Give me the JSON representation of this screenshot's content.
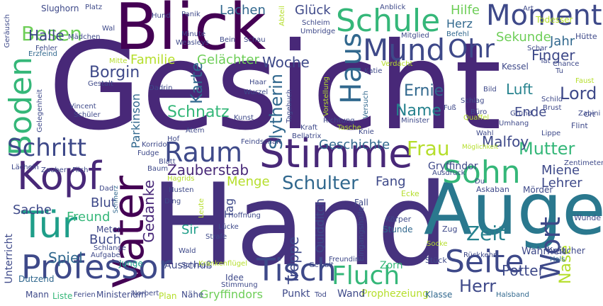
{
  "colors": {
    "background": "#ffffff",
    "palette": [
      "#440154",
      "#482878",
      "#3e4989",
      "#31688e",
      "#26828e",
      "#1f9e89",
      "#35b779",
      "#6ece58",
      "#b5de2b",
      "#fde725"
    ]
  },
  "words": [
    {
      "text": "Gesicht",
      "weight": 1.0,
      "color": "#482878"
    },
    {
      "text": "Hand",
      "weight": 0.86,
      "color": "#46327e"
    },
    {
      "text": "Blick",
      "weight": 0.58,
      "color": "#440154"
    },
    {
      "text": "Auge",
      "weight": 0.58,
      "color": "#2a788e"
    },
    {
      "text": "Stimme",
      "weight": 0.38,
      "color": "#482878"
    },
    {
      "text": "Vater",
      "weight": 0.36,
      "color": "#440154"
    },
    {
      "text": "Professor",
      "weight": 0.36,
      "color": "#3e4989"
    },
    {
      "text": "Tisch",
      "weight": 0.34,
      "color": "#3e4989"
    },
    {
      "text": "Kopf",
      "weight": 0.32,
      "color": "#482878"
    },
    {
      "text": "Tür",
      "weight": 0.32,
      "color": "#1f9e89"
    },
    {
      "text": "Schule",
      "weight": 0.28,
      "color": "#35b779"
    },
    {
      "text": "Mund",
      "weight": 0.28,
      "color": "#3e4989"
    },
    {
      "text": "Moment",
      "weight": 0.28,
      "color": "#3e4989"
    },
    {
      "text": "Seite",
      "weight": 0.28,
      "color": "#3e4989"
    },
    {
      "text": "Sohn",
      "weight": 0.28,
      "color": "#35b779"
    },
    {
      "text": "Boden",
      "weight": 0.26,
      "color": "#35b779"
    },
    {
      "text": "Haus",
      "weight": 0.24,
      "color": "#31688e"
    },
    {
      "text": "Raum",
      "weight": 0.24,
      "color": "#3e4989"
    },
    {
      "text": "Fluch",
      "weight": 0.24,
      "color": "#35b779"
    },
    {
      "text": "Wort",
      "weight": 0.24,
      "color": "#3e4989"
    },
    {
      "text": "Ohr",
      "weight": 0.22,
      "color": "#3e4989"
    },
    {
      "text": "Schritt",
      "weight": 0.22,
      "color": "#3e4989"
    },
    {
      "text": "Zeit",
      "weight": 0.2,
      "color": "#26828e"
    },
    {
      "text": "Schulter",
      "weight": 0.18,
      "color": "#31688e"
    },
    {
      "text": "Frau",
      "weight": 0.18,
      "color": "#b5de2b"
    },
    {
      "text": "Besen",
      "weight": 0.18,
      "color": "#6ece58"
    },
    {
      "text": "Slytherin",
      "weight": 0.14,
      "color": "#31688e"
    },
    {
      "text": "Herr",
      "weight": 0.14,
      "color": "#3e4989"
    },
    {
      "text": "Mutter",
      "weight": 0.14,
      "color": "#35b779"
    },
    {
      "text": "Lord",
      "weight": 0.14,
      "color": "#3e4989"
    },
    {
      "text": "Nase",
      "weight": 0.14,
      "color": "#b5de2b"
    },
    {
      "text": "Schnatz",
      "weight": 0.12,
      "color": "#35b779"
    },
    {
      "text": "Borgin",
      "weight": 0.12,
      "color": "#3e4989"
    },
    {
      "text": "Name",
      "weight": 0.12,
      "color": "#26828e"
    },
    {
      "text": "Ernie",
      "weight": 0.12,
      "color": "#31688e"
    },
    {
      "text": "Halle",
      "weight": 0.12,
      "color": "#3e4989"
    },
    {
      "text": "Karte",
      "weight": 0.12,
      "color": "#31688e"
    },
    {
      "text": "Malfoy",
      "weight": 0.12,
      "color": "#3e4989"
    },
    {
      "text": "Zauberstab",
      "weight": 0.12,
      "color": "#482878"
    },
    {
      "text": "Gedanke",
      "weight": 0.12,
      "color": "#482878"
    },
    {
      "text": "Geschichte",
      "weight": 0.1,
      "color": "#31688e"
    },
    {
      "text": "Jahr",
      "weight": 0.1,
      "color": "#31688e"
    },
    {
      "text": "Finger",
      "weight": 0.1,
      "color": "#3e4989"
    },
    {
      "text": "Luft",
      "weight": 0.1,
      "color": "#26828e"
    },
    {
      "text": "Ende",
      "weight": 0.1,
      "color": "#3e4989"
    },
    {
      "text": "Potter",
      "weight": 0.1,
      "color": "#3e4989"
    },
    {
      "text": "Treppe",
      "weight": 0.1,
      "color": "#3e4989"
    },
    {
      "text": "Spiel",
      "weight": 0.1,
      "color": "#31688e"
    },
    {
      "text": "Lachen",
      "weight": 0.1,
      "color": "#31688e"
    },
    {
      "text": "Woche",
      "weight": 0.1,
      "color": "#3e4989"
    },
    {
      "text": "Glück",
      "weight": 0.1,
      "color": "#3e4989"
    },
    {
      "text": "Hilfe",
      "weight": 0.1,
      "color": "#6ece58"
    },
    {
      "text": "Herz",
      "weight": 0.08,
      "color": "#31688e"
    },
    {
      "text": "Sekunde",
      "weight": 0.08,
      "color": "#6ece58"
    },
    {
      "text": "Familie",
      "weight": 0.08,
      "color": "#b5de2b"
    },
    {
      "text": "Gelächter",
      "weight": 0.08,
      "color": "#6ece58"
    },
    {
      "text": "Freund",
      "weight": 0.08,
      "color": "#35b779"
    },
    {
      "text": "Sache",
      "weight": 0.08,
      "color": "#3e4989"
    },
    {
      "text": "Blut",
      "weight": 0.08,
      "color": "#3e4989"
    },
    {
      "text": "Buch",
      "weight": 0.08,
      "color": "#3e4989"
    },
    {
      "text": "Sir",
      "weight": 0.08,
      "color": "#1f9e89"
    },
    {
      "text": "Menge",
      "weight": 0.08,
      "color": "#b5de2b"
    },
    {
      "text": "Fang",
      "weight": 0.08,
      "color": "#3e4989"
    },
    {
      "text": "Miene",
      "weight": 0.08,
      "color": "#3e4989"
    },
    {
      "text": "Lehrer",
      "weight": 0.08,
      "color": "#3e4989"
    },
    {
      "text": "Quidditch",
      "weight": 0.08,
      "color": "#3e4989"
    },
    {
      "text": "Tag",
      "weight": 0.08,
      "color": "#3e4989"
    },
    {
      "text": "Parkinson",
      "weight": 0.06,
      "color": "#31688e"
    },
    {
      "text": "Gryffindor",
      "weight": 0.06,
      "color": "#3e4989"
    },
    {
      "text": "Gryffindors",
      "weight": 0.06,
      "color": "#6ece58"
    },
    {
      "text": "Wahrheit",
      "weight": 0.06,
      "color": "#3e4989"
    },
    {
      "text": "Unterricht",
      "weight": 0.06,
      "color": "#3e4989"
    },
    {
      "text": "Ausschuß",
      "weight": 0.06,
      "color": "#3e4989"
    },
    {
      "text": "Prophezeiung",
      "weight": 0.06,
      "color": "#b5de2b"
    },
    {
      "text": "Wand",
      "weight": 0.06,
      "color": "#3e4989"
    },
    {
      "text": "Punkt",
      "weight": 0.06,
      "color": "#3e4989"
    },
    {
      "text": "Stunde",
      "weight": 0.06,
      "color": "#31688e"
    },
    {
      "text": "Zorn",
      "weight": 0.05,
      "color": "#35b779"
    },
    {
      "text": "Klasse",
      "weight": 0.05,
      "color": "#31688e"
    },
    {
      "text": "Junge",
      "weight": 0.05,
      "color": "#1f9e89"
    },
    {
      "text": "Dutzend",
      "weight": 0.05,
      "color": "#31688e"
    },
    {
      "text": "Meter",
      "weight": 0.05,
      "color": "#3e4989"
    },
    {
      "text": "Ministerium",
      "weight": 0.05,
      "color": "#3e4989"
    },
    {
      "text": "Mann",
      "weight": 0.05,
      "color": "#3e4989"
    },
    {
      "text": "Liste",
      "weight": 0.05,
      "color": "#35b779"
    },
    {
      "text": "Ferien",
      "weight": 0.05,
      "color": "#3e4989"
    },
    {
      "text": "Plan",
      "weight": 0.05,
      "color": "#b5de2b"
    },
    {
      "text": "Nähe",
      "weight": 0.05,
      "color": "#3e4989"
    },
    {
      "text": "Tod",
      "weight": 0.05,
      "color": "#3e4989"
    },
    {
      "text": "Idee",
      "weight": 0.05,
      "color": "#3e4989"
    },
    {
      "text": "Stimmung",
      "weight": 0.05,
      "color": "#3e4989"
    },
    {
      "text": "Eingangshalle",
      "weight": 0.05,
      "color": "#3e4989"
    },
    {
      "text": "Fall",
      "weight": 0.05,
      "color": "#3e4989"
    },
    {
      "text": "Ecke",
      "weight": 0.05,
      "color": "#b5de2b"
    },
    {
      "text": "Zug",
      "weight": 0.05,
      "color": "#3e4989"
    },
    {
      "text": "Körper",
      "weight": 0.05,
      "color": "#3e4989"
    },
    {
      "text": "Socke",
      "weight": 0.04,
      "color": "#b5de2b"
    },
    {
      "text": "Stück",
      "weight": 0.04,
      "color": "#3e4989"
    },
    {
      "text": "Rückkehr",
      "weight": 0.04,
      "color": "#3e4989"
    },
    {
      "text": "Kreacher",
      "weight": 0.04,
      "color": "#3e4989"
    },
    {
      "text": "Hals",
      "weight": 0.04,
      "color": "#31688e"
    },
    {
      "text": "Halsband",
      "weight": 0.04,
      "color": "#31688e"
    },
    {
      "text": "Mörder",
      "weight": 0.04,
      "color": "#3e4989"
    },
    {
      "text": "Askaban",
      "weight": 0.04,
      "color": "#3e4989"
    },
    {
      "text": "Wunde",
      "weight": 0.04,
      "color": "#3e4989"
    },
    {
      "text": "Zentimeter",
      "weight": 0.04,
      "color": "#3e4989"
    },
    {
      "text": "Flint",
      "weight": 0.04,
      "color": "#3e4989"
    },
    {
      "text": "Zabini",
      "weight": 0.04,
      "color": "#3e4989"
    },
    {
      "text": "Ort",
      "weight": 0.04,
      "color": "#3e4989"
    },
    {
      "text": "Faust",
      "weight": 0.04,
      "color": "#b5de2b"
    },
    {
      "text": "Kessel",
      "weight": 0.04,
      "color": "#3e4989"
    },
    {
      "text": "Chance",
      "weight": 0.04,
      "color": "#3e4989"
    },
    {
      "text": "Hütte",
      "weight": 0.04,
      "color": "#3e4989"
    },
    {
      "text": "Todesser",
      "weight": 0.04,
      "color": "#b5de2b"
    },
    {
      "text": "Art",
      "weight": 0.04,
      "color": "#3e4989"
    },
    {
      "text": "Anblick",
      "weight": 0.04,
      "color": "#3e4989"
    },
    {
      "text": "Befehl",
      "weight": 0.04,
      "color": "#31688e"
    },
    {
      "text": "Mitglied",
      "weight": 0.04,
      "color": "#3e4989"
    },
    {
      "text": "Umbridge",
      "weight": 0.04,
      "color": "#3e4989"
    },
    {
      "text": "Schleim",
      "weight": 0.04,
      "color": "#3e4989"
    },
    {
      "text": "Abteil",
      "weight": 0.04,
      "color": "#b5de2b"
    },
    {
      "text": "Schau",
      "weight": 0.04,
      "color": "#3e4989"
    },
    {
      "text": "Bein",
      "weight": 0.04,
      "color": "#3e4989"
    },
    {
      "text": "Weasleys",
      "weight": 0.04,
      "color": "#3e4989"
    },
    {
      "text": "Minute",
      "weight": 0.04,
      "color": "#3e4989"
    },
    {
      "text": "Panik",
      "weight": 0.04,
      "color": "#3e4989"
    },
    {
      "text": "Hund",
      "weight": 0.04,
      "color": "#3e4989"
    },
    {
      "text": "Platz",
      "weight": 0.04,
      "color": "#3e4989"
    },
    {
      "text": "Slughorn",
      "weight": 0.04,
      "color": "#3e4989"
    },
    {
      "text": "Wal",
      "weight": 0.03,
      "color": "#3e4989"
    },
    {
      "text": "Mädchen",
      "weight": 0.04,
      "color": "#3e4989"
    },
    {
      "text": "Geräusch",
      "weight": 0.04,
      "color": "#3e4989"
    },
    {
      "text": "Fehler",
      "weight": 0.04,
      "color": "#3e4989"
    },
    {
      "text": "Erzfeind",
      "weight": 0.04,
      "color": "#31688e"
    },
    {
      "text": "Mitte",
      "weight": 0.04,
      "color": "#b5de2b"
    },
    {
      "text": "Gestalt",
      "weight": 0.04,
      "color": "#3e4989"
    },
    {
      "text": "Dadrin",
      "weight": 0.04,
      "color": "#3e4989"
    },
    {
      "text": "Gelegenheit",
      "weight": 0.04,
      "color": "#3e4989"
    },
    {
      "text": "Vincent",
      "weight": 0.04,
      "color": "#3e4989"
    },
    {
      "text": "Schüler",
      "weight": 0.04,
      "color": "#3e4989"
    },
    {
      "text": "Kunst",
      "weight": 0.04,
      "color": "#3e4989"
    },
    {
      "text": "Wurzel",
      "weight": 0.04,
      "color": "#3e4989"
    },
    {
      "text": "Haar",
      "weight": 0.04,
      "color": "#3e4989"
    },
    {
      "text": "Tagebuch",
      "weight": 0.04,
      "color": "#3e4989"
    },
    {
      "text": "Vorstellung",
      "weight": 0.04,
      "color": "#b5de2b"
    },
    {
      "text": "Versuch",
      "weight": 0.04,
      "color": "#31688e"
    },
    {
      "text": "Verdacht",
      "weight": 0.04,
      "color": "#b5de2b"
    },
    {
      "text": "Katie",
      "weight": 0.04,
      "color": "#3e4989"
    },
    {
      "text": "Tat",
      "weight": 0.04,
      "color": "#3e4989"
    },
    {
      "text": "Schar",
      "weight": 0.03,
      "color": "#3e4989"
    },
    {
      "text": "Tu",
      "weight": 0.03,
      "color": "#3e4989"
    },
    {
      "text": "Bild",
      "weight": 0.04,
      "color": "#3e4989"
    },
    {
      "text": "Schlag",
      "weight": 0.04,
      "color": "#3e4989"
    },
    {
      "text": "Büro",
      "weight": 0.04,
      "color": "#3e4989"
    },
    {
      "text": "Quaffel",
      "weight": 0.04,
      "color": "#b5de2b"
    },
    {
      "text": "Fuß",
      "weight": 0.04,
      "color": "#3e4989"
    },
    {
      "text": "Schild",
      "weight": 0.04,
      "color": "#3e4989"
    },
    {
      "text": "Brust",
      "weight": 0.04,
      "color": "#3e4989"
    },
    {
      "text": "Grund",
      "weight": 0.04,
      "color": "#3e4989"
    },
    {
      "text": "Umhang",
      "weight": 0.04,
      "color": "#3e4989"
    },
    {
      "text": "Wahl",
      "weight": 0.04,
      "color": "#3e4989"
    },
    {
      "text": "Minister",
      "weight": 0.04,
      "color": "#3e4989"
    },
    {
      "text": "Knie",
      "weight": 0.04,
      "color": "#3e4989"
    },
    {
      "text": "Lippe",
      "weight": 0.04,
      "color": "#3e4989"
    },
    {
      "text": "Möglichkeit",
      "weight": 0.03,
      "color": "#b5de2b"
    },
    {
      "text": "Ausdruck",
      "weight": 0.04,
      "color": "#3e4989"
    },
    {
      "text": "Richtung",
      "weight": 0.04,
      "color": "#3e4989"
    },
    {
      "text": "Tasche",
      "weight": 0.04,
      "color": "#b5de2b"
    },
    {
      "text": "Kraft",
      "weight": 0.04,
      "color": "#3e4989"
    },
    {
      "text": "Bellatrix",
      "weight": 0.04,
      "color": "#3e4989"
    },
    {
      "text": "Feindschaft",
      "weight": 0.04,
      "color": "#3e4989"
    },
    {
      "text": "Atem",
      "weight": 0.04,
      "color": "#3e4989"
    },
    {
      "text": "Hof",
      "weight": 0.04,
      "color": "#3e4989"
    },
    {
      "text": "Korridor",
      "weight": 0.04,
      "color": "#3e4989"
    },
    {
      "text": "Fudge",
      "weight": 0.04,
      "color": "#3e4989"
    },
    {
      "text": "Blatt",
      "weight": 0.04,
      "color": "#3e4989"
    },
    {
      "text": "Baum",
      "weight": 0.04,
      "color": "#3e4989"
    },
    {
      "text": "Lächeln",
      "weight": 0.04,
      "color": "#3e4989"
    },
    {
      "text": "Zauber",
      "weight": 0.04,
      "color": "#3e4989"
    },
    {
      "text": "Filch",
      "weight": 0.04,
      "color": "#3e4989"
    },
    {
      "text": "Dad",
      "weight": 0.04,
      "color": "#3e4989"
    },
    {
      "text": "Schmerz",
      "weight": 0.03,
      "color": "#31688e"
    },
    {
      "text": "Hagrids",
      "weight": 0.04,
      "color": "#b5de2b"
    },
    {
      "text": "Husten",
      "weight": 0.04,
      "color": "#3e4989"
    },
    {
      "text": "Ding",
      "weight": 0.04,
      "color": "#3e4989"
    },
    {
      "text": "Leute",
      "weight": 0.04,
      "color": "#b5de2b"
    },
    {
      "text": "Hoffnung",
      "weight": 0.04,
      "color": "#3e4989"
    },
    {
      "text": "Lücke",
      "weight": 0.04,
      "color": "#3e4989"
    },
    {
      "text": "Strafe",
      "weight": 0.04,
      "color": "#3e4989"
    },
    {
      "text": "Schlange",
      "weight": 0.04,
      "color": "#3e4989"
    },
    {
      "text": "Aufgabe",
      "weight": 0.04,
      "color": "#3e4989"
    },
    {
      "text": "Wald",
      "weight": 0.04,
      "color": "#3e4989"
    },
    {
      "text": "Schrank",
      "weight": 0.04,
      "color": "#3e4989"
    },
    {
      "text": "Krankenflügel",
      "weight": 0.04,
      "color": "#b5de2b"
    },
    {
      "text": "Gewalt",
      "weight": 0.04,
      "color": "#3e4989"
    },
    {
      "text": "Freundin",
      "weight": 0.03,
      "color": "#3e4989"
    },
    {
      "text": "Norbert",
      "weight": 0.04,
      "color": "#3e4989"
    },
    {
      "text": "Du",
      "weight": 0.03,
      "color": "#3e4989"
    }
  ]
}
